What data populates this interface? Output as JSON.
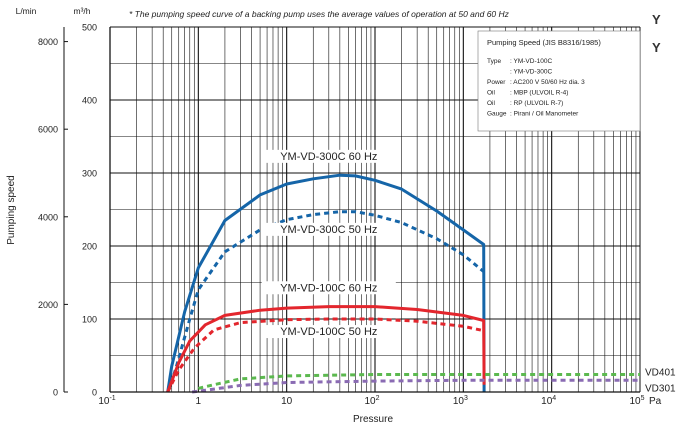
{
  "header": {
    "right_letters": [
      "Y",
      "Y"
    ]
  },
  "chart_data": {
    "type": "line",
    "note": "* The pumping speed curve of a backing pump uses the average values of operation at 50 and 60 Hz",
    "xlabel": "Pressure",
    "x_unit": "Pa",
    "ylabel": "Pumping speed",
    "y_unit_left": "L/min",
    "y_unit_right": "m³/h",
    "xscale": "log",
    "xlim": [
      0.1,
      100000
    ],
    "x_ticks": [
      {
        "base": "10",
        "sup": "-1"
      },
      {
        "base": "1",
        "sup": ""
      },
      {
        "base": "10",
        "sup": ""
      },
      {
        "base": "10",
        "sup": "2"
      },
      {
        "base": "10",
        "sup": "3"
      },
      {
        "base": "10",
        "sup": "4"
      },
      {
        "base": "10",
        "sup": "5"
      }
    ],
    "ylim_m3h": [
      0,
      500
    ],
    "yticks_m3h": [
      0,
      100,
      200,
      300,
      400,
      500
    ],
    "ylim_lmin": [
      0,
      8333
    ],
    "yticks_lmin": [
      0,
      2000,
      4000,
      6000,
      8000
    ],
    "grid": true,
    "legend": {
      "title": "Pumping Speed (JIS B8316/1985)",
      "rows": [
        [
          "Type",
          ": YM-VD-100C"
        ],
        [
          "",
          ": YM-VD-300C"
        ],
        [
          "Power",
          ": AC200 V 50/60 Hz dia. 3"
        ],
        [
          "Oil",
          ": MBP (ULVOIL R-4)"
        ],
        [
          "Oil",
          ": RP (ULVOIL R-7)"
        ],
        [
          "Gauge",
          ": Pirani / Oil Manometer"
        ]
      ],
      "placement": "top-right"
    },
    "colors": {
      "blue": "#1565a8",
      "red": "#e3262d",
      "green": "#5cb94f",
      "purple": "#8a6bb3"
    },
    "series": [
      {
        "name": "YM-VD-300C 60 Hz",
        "color": "#1565a8",
        "dash": false,
        "points": [
          [
            0.45,
            0
          ],
          [
            0.5,
            35
          ],
          [
            0.7,
            110
          ],
          [
            1,
            170
          ],
          [
            2,
            235
          ],
          [
            5,
            270
          ],
          [
            10,
            285
          ],
          [
            20,
            292
          ],
          [
            40,
            297
          ],
          [
            60,
            296
          ],
          [
            100,
            290
          ],
          [
            200,
            278
          ],
          [
            500,
            248
          ],
          [
            1000,
            222
          ],
          [
            1700,
            202
          ],
          [
            1720,
            0
          ]
        ]
      },
      {
        "name": "YM-VD-300C 50 Hz",
        "color": "#1565a8",
        "dash": true,
        "points": [
          [
            0.45,
            0
          ],
          [
            0.55,
            30
          ],
          [
            0.8,
            100
          ],
          [
            1,
            140
          ],
          [
            2,
            192
          ],
          [
            5,
            222
          ],
          [
            10,
            236
          ],
          [
            20,
            243
          ],
          [
            40,
            247
          ],
          [
            60,
            247
          ],
          [
            100,
            242
          ],
          [
            200,
            232
          ],
          [
            500,
            210
          ],
          [
            1000,
            188
          ],
          [
            1700,
            165
          ]
        ]
      },
      {
        "name": "YM-VD-100C 60 Hz",
        "color": "#e3262d",
        "dash": false,
        "points": [
          [
            0.45,
            0
          ],
          [
            0.6,
            40
          ],
          [
            0.8,
            70
          ],
          [
            1.2,
            92
          ],
          [
            2,
            105
          ],
          [
            5,
            112
          ],
          [
            10,
            115
          ],
          [
            30,
            117
          ],
          [
            100,
            117
          ],
          [
            300,
            113
          ],
          [
            1000,
            105
          ],
          [
            1700,
            98
          ],
          [
            1720,
            10
          ]
        ]
      },
      {
        "name": "YM-VD-100C 50 Hz",
        "color": "#e3262d",
        "dash": true,
        "points": [
          [
            0.45,
            0
          ],
          [
            0.6,
            30
          ],
          [
            0.9,
            60
          ],
          [
            1.5,
            85
          ],
          [
            3,
            95
          ],
          [
            10,
            99
          ],
          [
            30,
            100
          ],
          [
            100,
            100
          ],
          [
            300,
            97
          ],
          [
            1000,
            90
          ],
          [
            1700,
            84
          ]
        ]
      },
      {
        "name": "VD401",
        "color": "#5cb94f",
        "dash": true,
        "points": [
          [
            1,
            5
          ],
          [
            1.5,
            10
          ],
          [
            3,
            18
          ],
          [
            10,
            22
          ],
          [
            100,
            24
          ],
          [
            1000,
            24
          ],
          [
            100000,
            24
          ]
        ]
      },
      {
        "name": "VD301",
        "color": "#8a6bb3",
        "dash": true,
        "points": [
          [
            0.85,
            0
          ],
          [
            1.5,
            4
          ],
          [
            3,
            9
          ],
          [
            10,
            13
          ],
          [
            100,
            15
          ],
          [
            1000,
            16
          ],
          [
            100000,
            16
          ]
        ]
      }
    ],
    "curve_labels": [
      {
        "text": "YM-VD-300C   60 Hz",
        "x": 30,
        "y": 318
      },
      {
        "text": "YM-VD-300C   50 Hz",
        "x": 30,
        "y": 218
      },
      {
        "text": "YM-VD-100C   60 Hz",
        "x": 30,
        "y": 138
      },
      {
        "text": "YM-VD-100C   50 Hz",
        "x": 30,
        "y": 78
      }
    ]
  }
}
